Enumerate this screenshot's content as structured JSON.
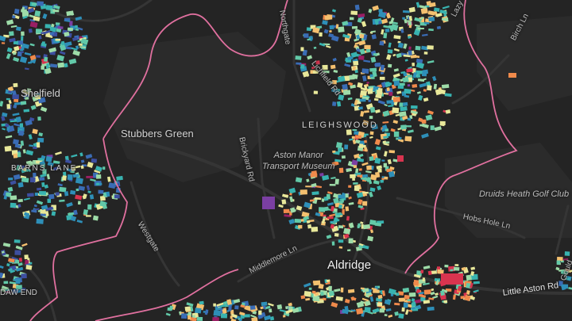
{
  "map": {
    "colors": {
      "background": "#242424",
      "park_area": "#2c2c2c",
      "road": "#343434",
      "major_road": "#3c3c3c",
      "boundary": "#e0709f",
      "building_palette": [
        "#3d4fa0",
        "#3a6cb5",
        "#2e8fb8",
        "#38b3b0",
        "#62c9a8",
        "#9edca8",
        "#e8e89a",
        "#f4c06f",
        "#f08a4b",
        "#d9344f",
        "#9a1f64",
        "#7b3fa3"
      ]
    },
    "labels": {
      "shelfield": "Shelfield",
      "stubbers_green": "Stubbers Green",
      "barns_lane": "BARNS LANE",
      "leighswood": "LEIGHSWOOD",
      "aston_manor_line1": "Aston Manor",
      "aston_manor_line2": "Transport Museum",
      "aldridge": "Aldridge",
      "druids_heath": "Druids Heath Golf Club",
      "birch_ln": "Birch Ln",
      "hobs_hole_ln": "Hobs Hole Ln",
      "brickyard_rd": "Brickyard Rd",
      "westgate": "Westgate",
      "middlemore_ln": "Middlemore Ln",
      "little_aston_rd": "Little Aston Rd",
      "northgate": "Northgate",
      "lazy_hill": "Lazy",
      "goulds": "Gould",
      "dawend": "DAW END",
      "lichfield_rd": "Lichfield Rd"
    }
  }
}
